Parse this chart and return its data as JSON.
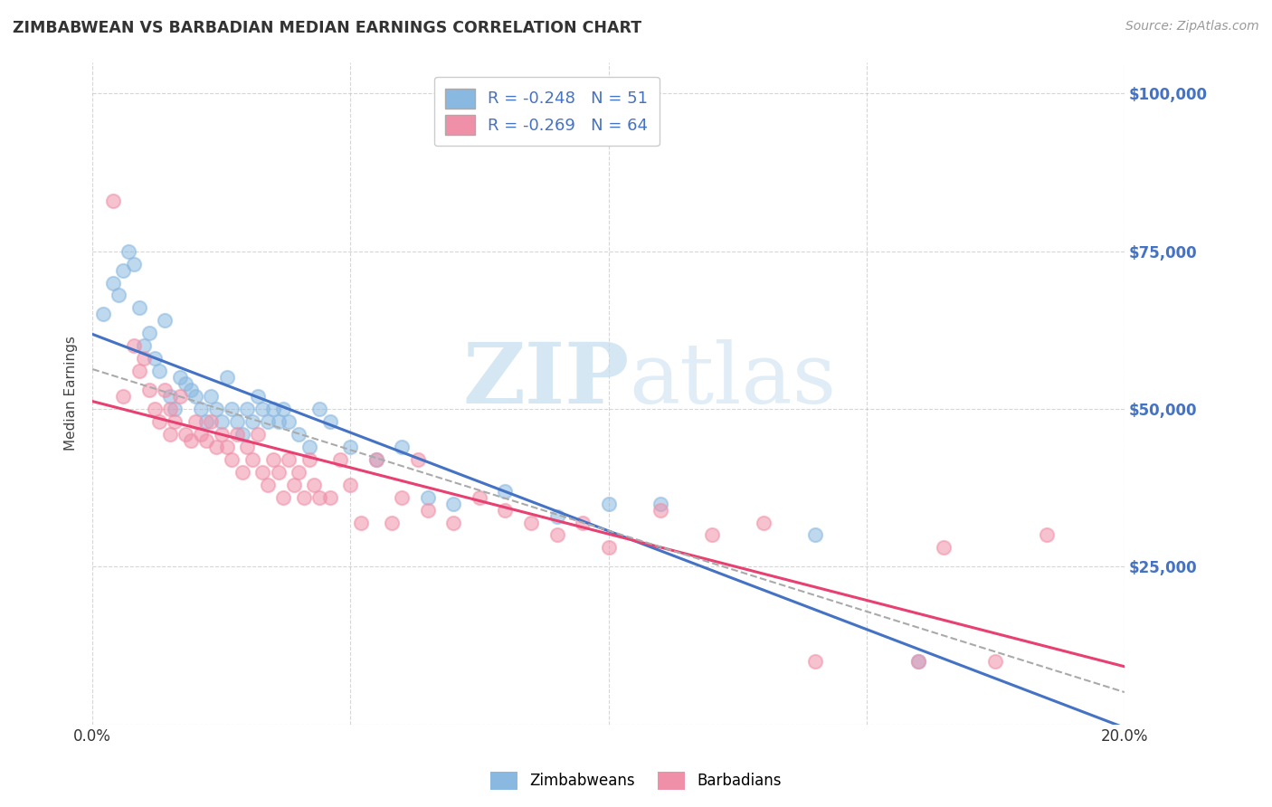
{
  "title": "ZIMBABWEAN VS BARBADIAN MEDIAN EARNINGS CORRELATION CHART",
  "source_text": "Source: ZipAtlas.com",
  "ylabel": "Median Earnings",
  "watermark_zip": "ZIP",
  "watermark_atlas": "atlas",
  "xlim": [
    0.0,
    0.2
  ],
  "ylim": [
    0,
    105000
  ],
  "xtick_vals": [
    0.0,
    0.05,
    0.1,
    0.15,
    0.2
  ],
  "xtick_labels": [
    "0.0%",
    "",
    "",
    "",
    "20.0%"
  ],
  "ytick_vals": [
    0,
    25000,
    50000,
    75000,
    100000
  ],
  "ytick_labels": [
    "",
    "$25,000",
    "$50,000",
    "$75,000",
    "$100,000"
  ],
  "blue_color": "#89b8e0",
  "pink_color": "#f090a8",
  "blue_line_color": "#4472c4",
  "pink_line_color": "#e84070",
  "dashed_line_color": "#aaaaaa",
  "r_blue": -0.248,
  "n_blue": 51,
  "r_pink": -0.269,
  "n_pink": 64,
  "legend_label_blue": "Zimbabweans",
  "legend_label_pink": "Barbadians",
  "axis_label_color": "#4472c4",
  "background_color": "#ffffff",
  "grid_color": "#bbbbbb",
  "blue_scatter_x": [
    0.002,
    0.004,
    0.005,
    0.006,
    0.007,
    0.008,
    0.009,
    0.01,
    0.011,
    0.012,
    0.013,
    0.014,
    0.015,
    0.016,
    0.017,
    0.018,
    0.019,
    0.02,
    0.021,
    0.022,
    0.023,
    0.024,
    0.025,
    0.026,
    0.027,
    0.028,
    0.029,
    0.03,
    0.031,
    0.032,
    0.033,
    0.034,
    0.035,
    0.036,
    0.037,
    0.038,
    0.04,
    0.042,
    0.044,
    0.046,
    0.05,
    0.055,
    0.06,
    0.065,
    0.07,
    0.08,
    0.09,
    0.1,
    0.11,
    0.14,
    0.16
  ],
  "blue_scatter_y": [
    65000,
    70000,
    68000,
    72000,
    75000,
    73000,
    66000,
    60000,
    62000,
    58000,
    56000,
    64000,
    52000,
    50000,
    55000,
    54000,
    53000,
    52000,
    50000,
    48000,
    52000,
    50000,
    48000,
    55000,
    50000,
    48000,
    46000,
    50000,
    48000,
    52000,
    50000,
    48000,
    50000,
    48000,
    50000,
    48000,
    46000,
    44000,
    50000,
    48000,
    44000,
    42000,
    44000,
    36000,
    35000,
    37000,
    33000,
    35000,
    35000,
    30000,
    10000
  ],
  "pink_scatter_x": [
    0.004,
    0.006,
    0.008,
    0.009,
    0.01,
    0.011,
    0.012,
    0.013,
    0.014,
    0.015,
    0.015,
    0.016,
    0.017,
    0.018,
    0.019,
    0.02,
    0.021,
    0.022,
    0.023,
    0.024,
    0.025,
    0.026,
    0.027,
    0.028,
    0.029,
    0.03,
    0.031,
    0.032,
    0.033,
    0.034,
    0.035,
    0.036,
    0.037,
    0.038,
    0.039,
    0.04,
    0.041,
    0.042,
    0.043,
    0.044,
    0.046,
    0.048,
    0.05,
    0.052,
    0.055,
    0.058,
    0.06,
    0.063,
    0.065,
    0.07,
    0.075,
    0.08,
    0.085,
    0.09,
    0.095,
    0.1,
    0.11,
    0.12,
    0.13,
    0.14,
    0.16,
    0.165,
    0.175,
    0.185
  ],
  "pink_scatter_y": [
    83000,
    52000,
    60000,
    56000,
    58000,
    53000,
    50000,
    48000,
    53000,
    50000,
    46000,
    48000,
    52000,
    46000,
    45000,
    48000,
    46000,
    45000,
    48000,
    44000,
    46000,
    44000,
    42000,
    46000,
    40000,
    44000,
    42000,
    46000,
    40000,
    38000,
    42000,
    40000,
    36000,
    42000,
    38000,
    40000,
    36000,
    42000,
    38000,
    36000,
    36000,
    42000,
    38000,
    32000,
    42000,
    32000,
    36000,
    42000,
    34000,
    32000,
    36000,
    34000,
    32000,
    30000,
    32000,
    28000,
    34000,
    30000,
    32000,
    10000,
    10000,
    28000,
    10000,
    30000
  ]
}
